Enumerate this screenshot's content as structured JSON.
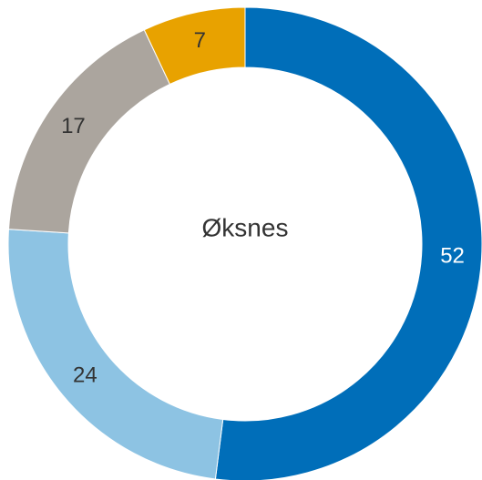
{
  "chart_data": {
    "type": "donut",
    "center_label": "Øksnes",
    "values": [
      52,
      24,
      17,
      7
    ],
    "colors": [
      "#006eb9",
      "#8dc3e3",
      "#aba59e",
      "#e8a200"
    ]
  }
}
